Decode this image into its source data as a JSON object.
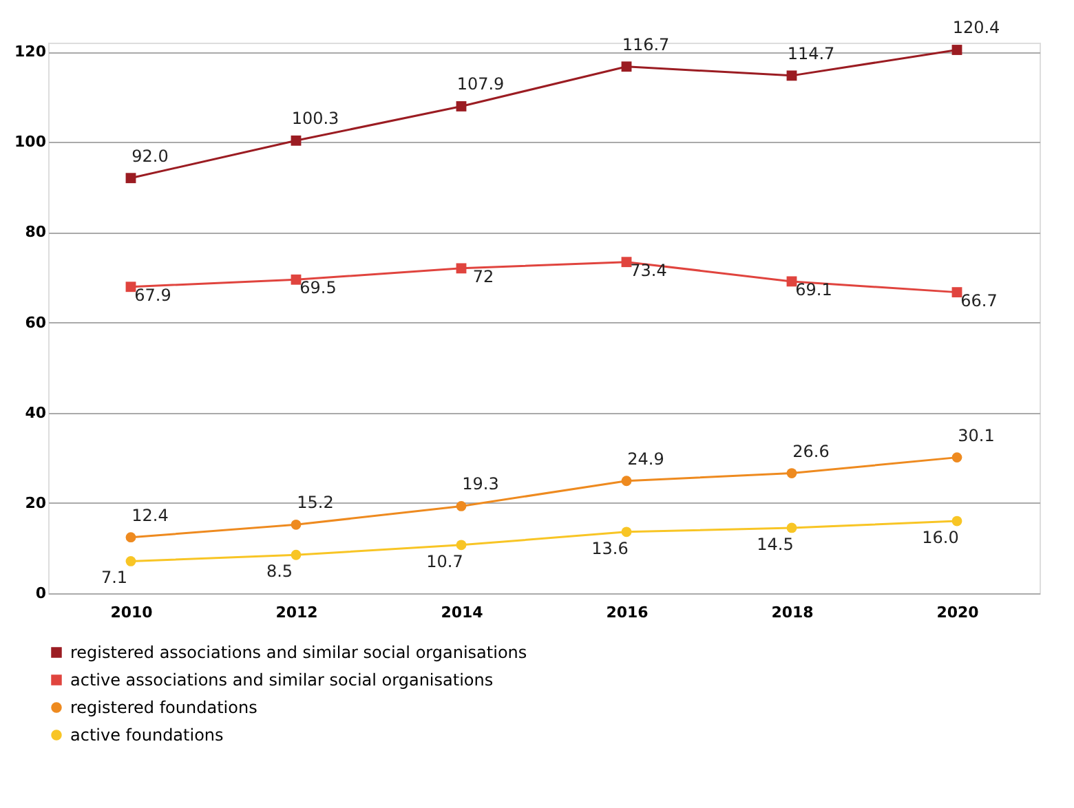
{
  "chart_data": {
    "type": "line",
    "categories": [
      "2010",
      "2012",
      "2014",
      "2016",
      "2018",
      "2020"
    ],
    "series": [
      {
        "name": "registered associations and similar social organisations",
        "color": "#9b1c22",
        "marker": "square",
        "values": [
          92.0,
          100.3,
          107.9,
          116.7,
          114.7,
          120.4
        ],
        "value_labels": [
          "92.0",
          "100.3",
          "107.9",
          "116.7",
          "114.7",
          "120.4"
        ]
      },
      {
        "name": "active associations and similar social organisations",
        "color": "#e0443e",
        "marker": "square",
        "values": [
          67.9,
          69.5,
          72,
          73.4,
          69.1,
          66.7
        ],
        "value_labels": [
          "67.9",
          "69.5",
          "72",
          "73.4",
          "69.1",
          "66.7"
        ]
      },
      {
        "name": "registered foundations",
        "color": "#ee8a1f",
        "marker": "circle",
        "values": [
          12.4,
          15.2,
          19.3,
          24.9,
          26.6,
          30.1
        ],
        "value_labels": [
          "12.4",
          "15.2",
          "19.3",
          "24.9",
          "26.6",
          "30.1"
        ]
      },
      {
        "name": "active foundations",
        "color": "#f8c525",
        "marker": "circle",
        "values": [
          7.1,
          8.5,
          10.7,
          13.6,
          14.5,
          16.0
        ],
        "value_labels": [
          "7.1",
          "8.5",
          "10.7",
          "13.6",
          "14.5",
          "16.0"
        ]
      }
    ],
    "ylim": [
      0,
      122
    ],
    "yticks": [
      0,
      20,
      40,
      60,
      80,
      100,
      120
    ],
    "grid": "y",
    "legend": "bottom",
    "line_style": "solid"
  }
}
